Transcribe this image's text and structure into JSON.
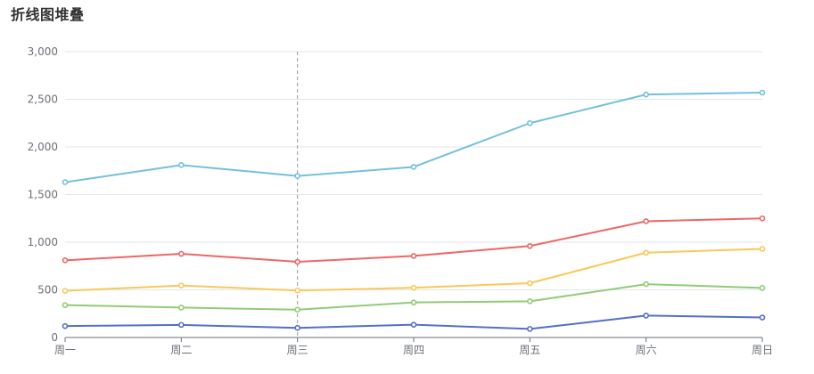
{
  "title": "折线图堆叠",
  "colors": {
    "grid": "#e0e6f1",
    "axis": "#6e7079",
    "crosshair": "#999999",
    "series": [
      "#5470c6",
      "#91cc75",
      "#fac858",
      "#ee6666",
      "#73c0de"
    ]
  },
  "chart_data": {
    "type": "line",
    "title": "折线图堆叠",
    "stacked": true,
    "categories": [
      "周一",
      "周二",
      "周三",
      "周四",
      "周五",
      "周六",
      "周日"
    ],
    "ylim": [
      0,
      3000
    ],
    "yticks": [
      0,
      500,
      1000,
      1500,
      2000,
      2500,
      3000
    ],
    "ytick_labels": [
      "0",
      "500",
      "1,000",
      "1,500",
      "2,000",
      "2,500",
      "3,000"
    ],
    "grid": true,
    "legend": "none",
    "highlight_category": "周三",
    "series": [
      {
        "values": [
          120,
          132,
          101,
          134,
          90,
          230,
          210
        ],
        "color": "#5470c6"
      },
      {
        "values": [
          220,
          182,
          191,
          234,
          290,
          330,
          310
        ],
        "color": "#91cc75"
      },
      {
        "values": [
          150,
          232,
          201,
          154,
          190,
          330,
          410
        ],
        "color": "#fac858"
      },
      {
        "values": [
          320,
          332,
          301,
          334,
          390,
          330,
          320
        ],
        "color": "#ee6666"
      },
      {
        "values": [
          820,
          932,
          901,
          934,
          1290,
          1330,
          1320
        ],
        "color": "#73c0de"
      }
    ]
  }
}
